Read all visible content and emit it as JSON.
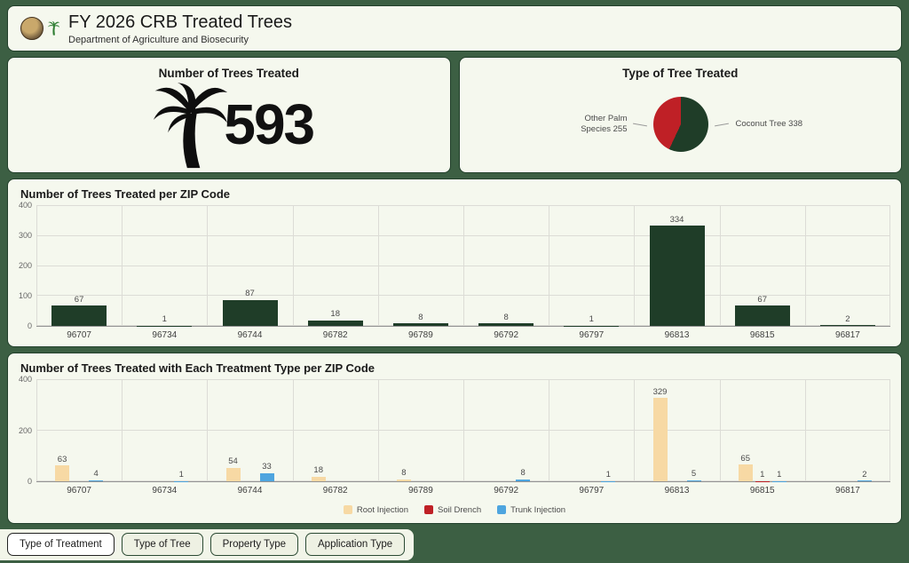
{
  "header": {
    "title": "FY 2026 CRB Treated Trees",
    "subtitle": "Department of Agriculture and Biosecurity"
  },
  "indicator": {
    "title": "Number of Trees Treated",
    "value": "593"
  },
  "tabs": [
    {
      "label": "Type of Treatment",
      "active": true
    },
    {
      "label": "Type of Tree",
      "active": false
    },
    {
      "label": "Property Type",
      "active": false
    },
    {
      "label": "Application Type",
      "active": false
    }
  ],
  "colors": {
    "background": "#3c5f43",
    "panel": "#f5f8ee",
    "panel_border": "#223f2b",
    "bar_green": "#1f3d28",
    "root_injection": "#f7d9a4",
    "soil_drench": "#bf2026",
    "trunk_injection": "#4ea5df"
  },
  "chart_data": [
    {
      "id": "tree-type-pie",
      "type": "pie",
      "title": "Type of Tree Treated",
      "slices": [
        {
          "label": "Coconut Tree",
          "value": 338,
          "color": "#1f3d28"
        },
        {
          "label": "Other Palm Species",
          "value": 255,
          "color": "#bf2026"
        }
      ]
    },
    {
      "id": "zip-bar",
      "type": "bar",
      "title": "Number of Trees Treated per ZIP Code",
      "categories": [
        "96707",
        "96734",
        "96744",
        "96782",
        "96789",
        "96792",
        "96797",
        "96813",
        "96815",
        "96817"
      ],
      "values": [
        67,
        1,
        87,
        18,
        8,
        8,
        1,
        334,
        67,
        2
      ],
      "bar_color": "#1f3d28",
      "ylim": [
        0,
        400
      ],
      "yticks": [
        0,
        100,
        200,
        300,
        400
      ],
      "xlabel": "",
      "ylabel": "",
      "grid": true
    },
    {
      "id": "treatment-grouped-bar",
      "type": "bar",
      "title": "Number of Trees Treated with Each Treatment Type per ZIP Code",
      "categories": [
        "96707",
        "96734",
        "96744",
        "96782",
        "96789",
        "96792",
        "96797",
        "96813",
        "96815",
        "96817"
      ],
      "series": [
        {
          "name": "Root Injection",
          "color": "#f7d9a4",
          "values": [
            63,
            0,
            54,
            18,
            8,
            0,
            0,
            329,
            65,
            0
          ]
        },
        {
          "name": "Soil Drench",
          "color": "#bf2026",
          "values": [
            0,
            0,
            0,
            0,
            0,
            0,
            0,
            0,
            1,
            0
          ]
        },
        {
          "name": "Trunk Injection",
          "color": "#4ea5df",
          "values": [
            4,
            1,
            33,
            0,
            0,
            8,
            1,
            5,
            1,
            2
          ]
        }
      ],
      "ylim": [
        0,
        400
      ],
      "yticks": [
        0,
        200,
        400
      ],
      "legend_position": "bottom",
      "grid": true
    }
  ]
}
